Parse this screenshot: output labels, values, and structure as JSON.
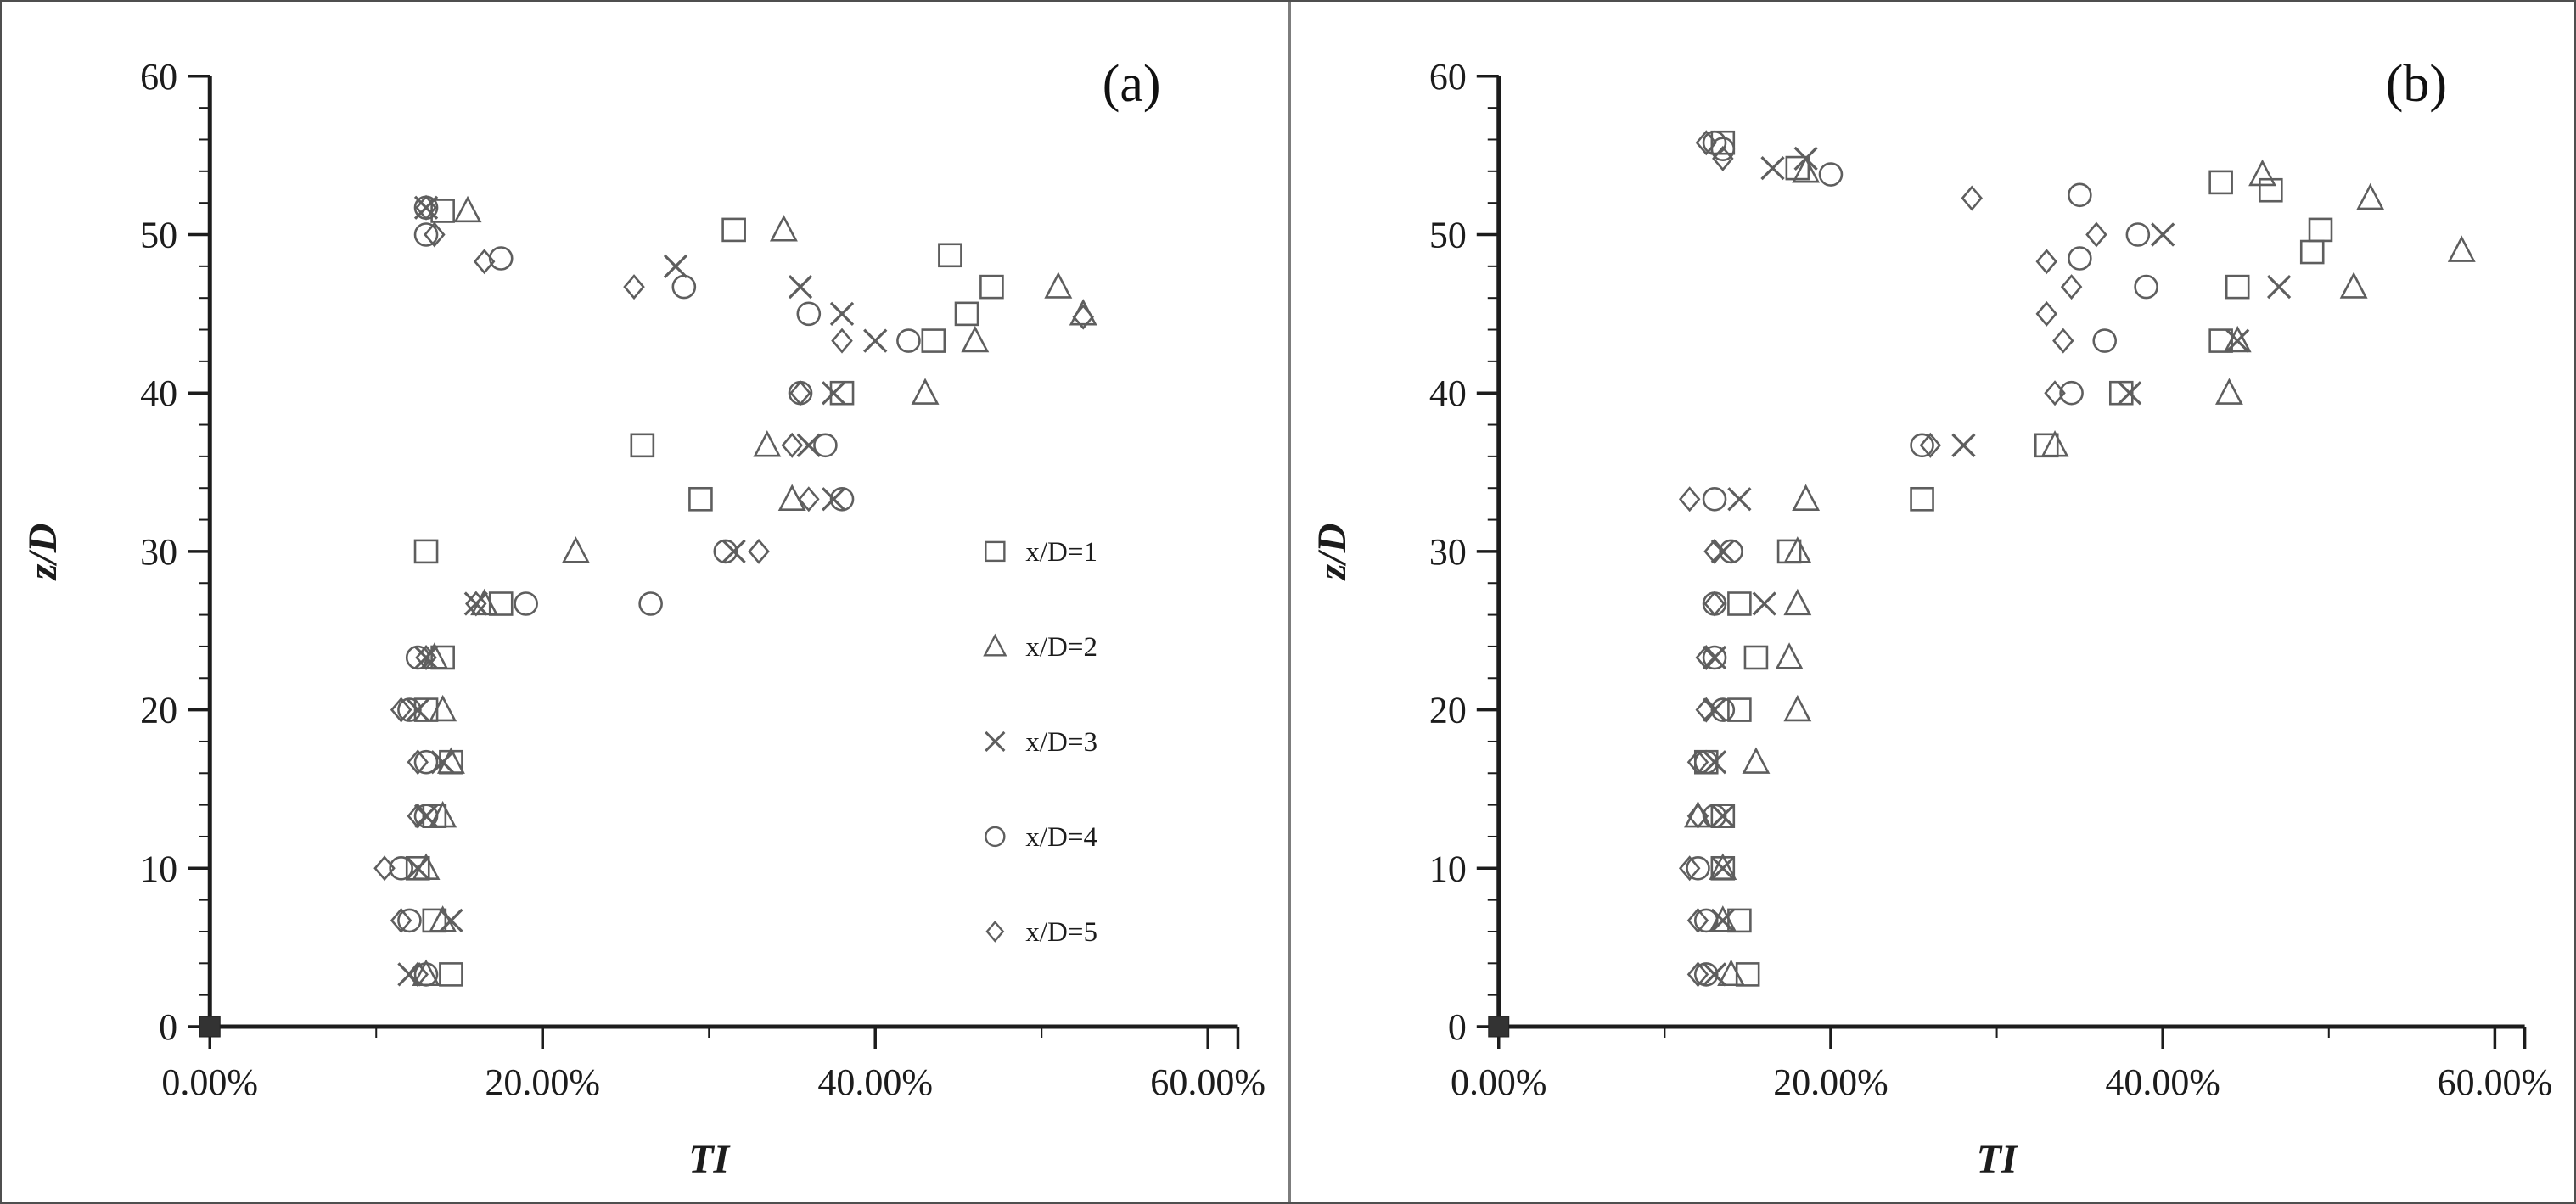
{
  "figure": {
    "background": "#ffffff",
    "border_color": "#4f4f4f",
    "marker_color": "#5e5e5e",
    "axis_color": "#1c1c1c",
    "text_color": "#1c1c1c"
  },
  "chart_data": [
    {
      "type": "scatter",
      "panel_label": "(a)",
      "xlabel": "TI",
      "ylabel": "z/D",
      "xlim": [
        0,
        61.8
      ],
      "ylim": [
        0,
        60
      ],
      "x_units": "percent TI",
      "y_units": "z/D",
      "grid": false,
      "x_ticks": [
        {
          "v": 0,
          "label": "0.00%"
        },
        {
          "v": 20,
          "label": "20.00%"
        },
        {
          "v": 40,
          "label": "40.00%"
        },
        {
          "v": 60,
          "label": "60.00%"
        }
      ],
      "x_minor_step": 10,
      "y_ticks": [
        {
          "v": 0,
          "label": "0"
        },
        {
          "v": 10,
          "label": "10"
        },
        {
          "v": 20,
          "label": "20"
        },
        {
          "v": 30,
          "label": "30"
        },
        {
          "v": 40,
          "label": "40"
        },
        {
          "v": 50,
          "label": "50"
        },
        {
          "v": 60,
          "label": "60"
        }
      ],
      "y_minor_step": 2,
      "origin_point": [
        0,
        0
      ],
      "legend": {
        "visible": true,
        "position": "right-middle",
        "items": [
          {
            "label": "x/D=1",
            "marker": "square"
          },
          {
            "label": "x/D=2",
            "marker": "triangle"
          },
          {
            "label": "x/D=3",
            "marker": "x"
          },
          {
            "label": "x/D=4",
            "marker": "circle"
          },
          {
            "label": "x/D=5",
            "marker": "diamond"
          }
        ]
      },
      "series": [
        {
          "name": "x/D=1",
          "marker": "square",
          "points": [
            [
              14.5,
              3.3
            ],
            [
              13.5,
              6.7
            ],
            [
              12.5,
              10
            ],
            [
              13.5,
              13.3
            ],
            [
              14.5,
              16.7
            ],
            [
              13,
              20
            ],
            [
              14,
              23.3
            ],
            [
              17.5,
              26.7
            ],
            [
              13,
              30
            ],
            [
              29.5,
              33.3
            ],
            [
              26,
              36.7
            ],
            [
              38,
              40
            ],
            [
              43.5,
              43.3
            ],
            [
              45.5,
              45
            ],
            [
              47,
              46.7
            ],
            [
              44.5,
              48.7
            ],
            [
              31.5,
              50.3
            ],
            [
              14,
              51.5
            ]
          ]
        },
        {
          "name": "x/D=2",
          "marker": "triangle",
          "points": [
            [
              13,
              3.3
            ],
            [
              14,
              6.7
            ],
            [
              13,
              10
            ],
            [
              14,
              13.3
            ],
            [
              14.5,
              16.7
            ],
            [
              14,
              20
            ],
            [
              13.5,
              23.3
            ],
            [
              16.5,
              26.7
            ],
            [
              22,
              30
            ],
            [
              35,
              33.3
            ],
            [
              33.5,
              36.7
            ],
            [
              43,
              40
            ],
            [
              46,
              43.3
            ],
            [
              52.5,
              45
            ],
            [
              51,
              46.7
            ],
            [
              34.5,
              50.3
            ],
            [
              15.5,
              51.5
            ]
          ]
        },
        {
          "name": "x/D=3",
          "marker": "x",
          "points": [
            [
              12,
              3.3
            ],
            [
              14.5,
              6.7
            ],
            [
              12.5,
              10
            ],
            [
              13,
              13.3
            ],
            [
              14,
              16.7
            ],
            [
              12.5,
              20
            ],
            [
              13,
              23.3
            ],
            [
              16,
              26.7
            ],
            [
              31.5,
              30
            ],
            [
              37.5,
              33.3
            ],
            [
              36,
              36.7
            ],
            [
              37.5,
              40
            ],
            [
              40,
              43.3
            ],
            [
              38,
              45
            ],
            [
              35.5,
              46.7
            ],
            [
              28,
              48
            ],
            [
              13,
              51.7
            ]
          ]
        },
        {
          "name": "x/D=4",
          "marker": "circle",
          "points": [
            [
              13,
              3.3
            ],
            [
              12,
              6.7
            ],
            [
              11.5,
              10
            ],
            [
              13,
              13.3
            ],
            [
              13,
              16.7
            ],
            [
              12,
              20
            ],
            [
              12.5,
              23.3
            ],
            [
              19,
              26.7
            ],
            [
              26.5,
              26.7
            ],
            [
              31,
              30
            ],
            [
              38,
              33.3
            ],
            [
              37,
              36.7
            ],
            [
              35.5,
              40
            ],
            [
              42,
              43.3
            ],
            [
              36,
              45
            ],
            [
              28.5,
              46.7
            ],
            [
              17.5,
              48.5
            ],
            [
              13,
              50
            ],
            [
              13,
              51.7
            ]
          ]
        },
        {
          "name": "x/D=5",
          "marker": "diamond",
          "points": [
            [
              12.5,
              3.3
            ],
            [
              11.5,
              6.7
            ],
            [
              10.5,
              10
            ],
            [
              12.5,
              13.3
            ],
            [
              12.5,
              16.7
            ],
            [
              11.5,
              20
            ],
            [
              13,
              23.3
            ],
            [
              16,
              26.7
            ],
            [
              33,
              30
            ],
            [
              36,
              33.3
            ],
            [
              35,
              36.7
            ],
            [
              35.5,
              40
            ],
            [
              38,
              43.3
            ],
            [
              52.5,
              44.8
            ],
            [
              25.5,
              46.7
            ],
            [
              16.5,
              48.3
            ],
            [
              13.5,
              50
            ],
            [
              13,
              51.7
            ]
          ]
        }
      ]
    },
    {
      "type": "scatter",
      "panel_label": "(b)",
      "xlabel": "TI",
      "ylabel": "z/D",
      "xlim": [
        0,
        61.8
      ],
      "ylim": [
        0,
        60
      ],
      "x_units": "percent TI",
      "y_units": "z/D",
      "grid": false,
      "x_ticks": [
        {
          "v": 0,
          "label": "0.00%"
        },
        {
          "v": 20,
          "label": "20.00%"
        },
        {
          "v": 40,
          "label": "40.00%"
        },
        {
          "v": 60,
          "label": "60.00%"
        }
      ],
      "x_minor_step": 10,
      "y_ticks": [
        {
          "v": 0,
          "label": "0"
        },
        {
          "v": 10,
          "label": "10"
        },
        {
          "v": 20,
          "label": "20"
        },
        {
          "v": 30,
          "label": "30"
        },
        {
          "v": 40,
          "label": "40"
        },
        {
          "v": 50,
          "label": "50"
        },
        {
          "v": 60,
          "label": "60"
        }
      ],
      "y_minor_step": 2,
      "origin_point": [
        0,
        0
      ],
      "legend": {
        "visible": false,
        "position": "none",
        "items": []
      },
      "series": [
        {
          "name": "x/D=1",
          "marker": "square",
          "points": [
            [
              15,
              3.3
            ],
            [
              14.5,
              6.7
            ],
            [
              13.5,
              10
            ],
            [
              13.5,
              13.3
            ],
            [
              12.5,
              16.7
            ],
            [
              14.5,
              20
            ],
            [
              15.5,
              23.3
            ],
            [
              14.5,
              26.7
            ],
            [
              17.5,
              30
            ],
            [
              25.5,
              33.3
            ],
            [
              33,
              36.7
            ],
            [
              37.5,
              40
            ],
            [
              43.5,
              43.3
            ],
            [
              44.5,
              46.7
            ],
            [
              49,
              48.9
            ],
            [
              49.5,
              50.3
            ],
            [
              46.5,
              52.8
            ],
            [
              43.5,
              53.3
            ],
            [
              18,
              54.2
            ],
            [
              13.5,
              55.8
            ]
          ]
        },
        {
          "name": "x/D=2",
          "marker": "triangle",
          "points": [
            [
              14,
              3.3
            ],
            [
              13.5,
              6.7
            ],
            [
              13.5,
              10
            ],
            [
              12,
              13.3
            ],
            [
              15.5,
              16.7
            ],
            [
              18,
              20
            ],
            [
              17.5,
              23.3
            ],
            [
              18,
              26.7
            ],
            [
              18,
              30
            ],
            [
              18.5,
              33.3
            ],
            [
              33.5,
              36.7
            ],
            [
              44,
              40
            ],
            [
              44.5,
              43.3
            ],
            [
              51.5,
              46.7
            ],
            [
              58,
              49
            ],
            [
              52.5,
              52.3
            ],
            [
              46,
              53.8
            ],
            [
              18.5,
              54
            ]
          ]
        },
        {
          "name": "x/D=3",
          "marker": "x",
          "points": [
            [
              13,
              3.3
            ],
            [
              13.5,
              6.7
            ],
            [
              13.5,
              10
            ],
            [
              13.5,
              13.3
            ],
            [
              13,
              16.7
            ],
            [
              13,
              20
            ],
            [
              13,
              23.3
            ],
            [
              16,
              26.7
            ],
            [
              13.5,
              30
            ],
            [
              14.5,
              33.3
            ],
            [
              28,
              36.7
            ],
            [
              38,
              40
            ],
            [
              44.5,
              43.3
            ],
            [
              47,
              46.7
            ],
            [
              40,
              50
            ],
            [
              16.5,
              54.2
            ],
            [
              18.5,
              54.8
            ]
          ]
        },
        {
          "name": "x/D=4",
          "marker": "circle",
          "points": [
            [
              12.5,
              3.3
            ],
            [
              12.5,
              6.7
            ],
            [
              12,
              10
            ],
            [
              13,
              13.3
            ],
            [
              12.5,
              16.7
            ],
            [
              13.5,
              20
            ],
            [
              13,
              23.3
            ],
            [
              13,
              26.7
            ],
            [
              14,
              30
            ],
            [
              13,
              33.3
            ],
            [
              25.5,
              36.7
            ],
            [
              34.5,
              40
            ],
            [
              36.5,
              43.3
            ],
            [
              39,
              46.7
            ],
            [
              35,
              48.5
            ],
            [
              38.5,
              50
            ],
            [
              35,
              52.5
            ],
            [
              20,
              53.8
            ],
            [
              13.5,
              55.4
            ],
            [
              13,
              55.8
            ]
          ]
        },
        {
          "name": "x/D=5",
          "marker": "diamond",
          "points": [
            [
              12,
              3.3
            ],
            [
              12,
              6.7
            ],
            [
              11.5,
              10
            ],
            [
              12,
              13.3
            ],
            [
              12,
              16.7
            ],
            [
              12.5,
              20
            ],
            [
              12.5,
              23.3
            ],
            [
              13,
              26.7
            ],
            [
              13,
              30
            ],
            [
              11.5,
              33.3
            ],
            [
              26,
              36.7
            ],
            [
              33.5,
              40
            ],
            [
              34,
              43.3
            ],
            [
              33,
              45
            ],
            [
              34.5,
              46.7
            ],
            [
              33,
              48.3
            ],
            [
              36,
              50
            ],
            [
              28.5,
              52.3
            ],
            [
              13.5,
              54.8
            ],
            [
              12.5,
              55.8
            ]
          ]
        }
      ]
    }
  ]
}
